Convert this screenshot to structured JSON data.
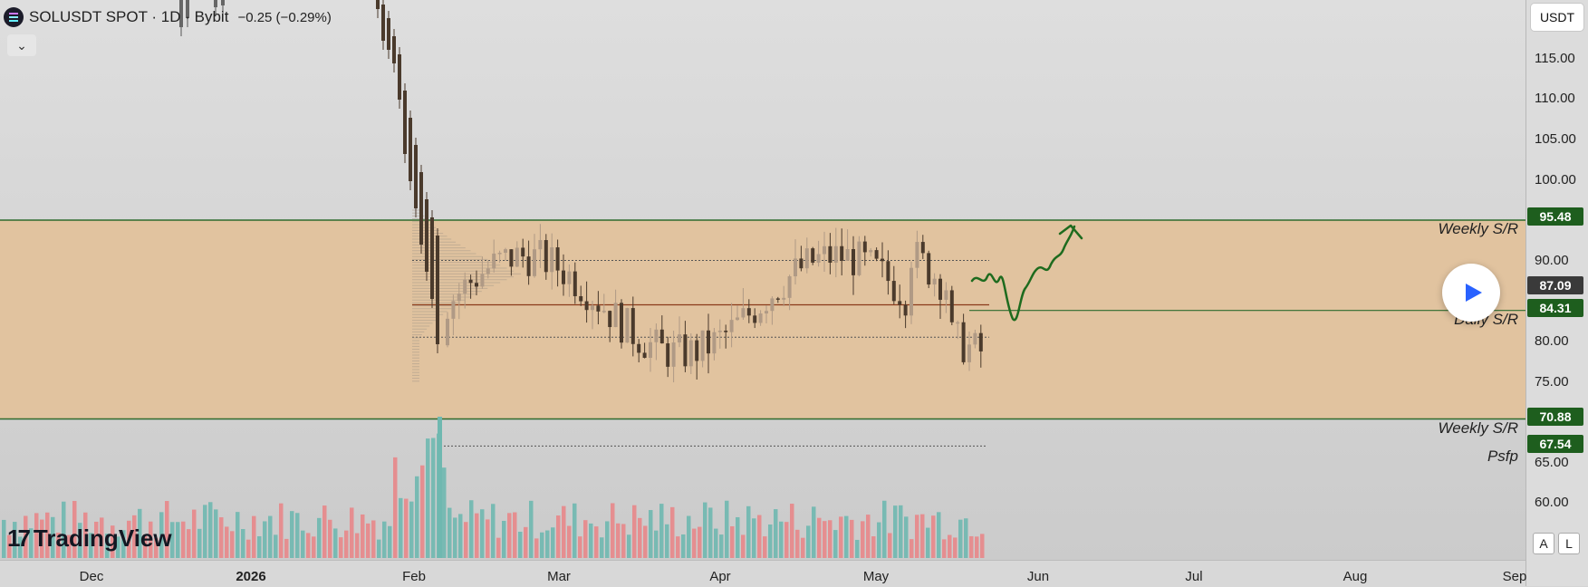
{
  "header": {
    "title": "SOLUSDT SPOT · 1D · Bybit",
    "change": "−0.25 (−0.29%)",
    "symbol_icon": "solana-logo-icon",
    "collapse_icon": "chevron-down-icon"
  },
  "price_axis": {
    "currency": "USDT",
    "ticks": [
      "115.00",
      "110.00",
      "105.00",
      "100.00",
      "90.00",
      "80.00",
      "75.00",
      "65.00",
      "60.00"
    ],
    "tags": [
      {
        "label": "95.48",
        "color": "#1e5e1e"
      },
      {
        "label": "87.09",
        "color": "#3a3a3a"
      },
      {
        "label": "84.31",
        "color": "#1e5e1e"
      },
      {
        "label": "70.88",
        "color": "#1e5e1e"
      },
      {
        "label": "67.54",
        "color": "#1e5e1e"
      }
    ]
  },
  "date_axis": {
    "labels": [
      {
        "text": "Dec",
        "bold": false
      },
      {
        "text": "2026",
        "bold": true
      },
      {
        "text": "Feb",
        "bold": false
      },
      {
        "text": "Mar",
        "bold": false
      },
      {
        "text": "Apr",
        "bold": false
      },
      {
        "text": "May",
        "bold": false
      },
      {
        "text": "Jun",
        "bold": false
      },
      {
        "text": "Jul",
        "bold": false
      },
      {
        "text": "Aug",
        "bold": false
      },
      {
        "text": "Sep",
        "bold": false
      }
    ]
  },
  "annotations": {
    "weekly_top": "Weekly S/R",
    "daily": "Daily S/R",
    "weekly_bottom": "Weekly S/R",
    "psfp": "Psfp"
  },
  "controls": {
    "play_icon": "play-icon",
    "auto_scale": "A",
    "log_scale": "L"
  },
  "branding": {
    "name": "TradingView",
    "icon": "tradingview-logo-icon"
  },
  "colors": {
    "zone_fill": "#e2c199",
    "sr_line": "#2e6b2e",
    "bull_candle": "#b09a85",
    "bear_candle": "#4a3a2c",
    "vol_up": "#6fb8b0",
    "vol_down": "#e8878a",
    "forecast": "#1e6b1e"
  },
  "chart_data": {
    "type": "candlestick",
    "levels": {
      "weekly_top": 95.48,
      "daily": 84.31,
      "weekly_bottom": 70.88,
      "psfp": 67.54,
      "last_price": 87.09
    },
    "y_axis_ticks": [
      60,
      65,
      75,
      80,
      90,
      100,
      105,
      110,
      115
    ]
  }
}
